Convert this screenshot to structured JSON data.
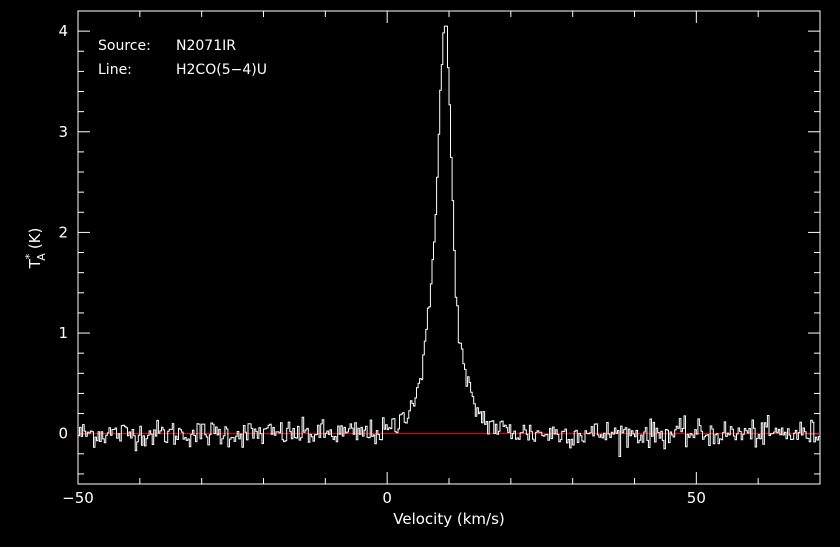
{
  "chart_data": {
    "type": "line",
    "xlabel": "Velocity (km/s)",
    "ylabel": "T*A (K)",
    "ylabel_main": "T",
    "ylabel_sup": "*",
    "ylabel_sub": "A",
    "ylabel_unit": "(K)",
    "xlim": [
      -50,
      70
    ],
    "ylim": [
      -0.5,
      4.2
    ],
    "x_ticks": [
      -50,
      0,
      50
    ],
    "x_tick_labels": [
      "−50",
      "0",
      "50"
    ],
    "y_ticks": [
      0,
      1,
      2,
      3,
      4
    ],
    "y_tick_labels": [
      "0",
      "1",
      "2",
      "3",
      "4"
    ],
    "baseline": 0,
    "grid": false,
    "colors": {
      "background": "#000000",
      "spectrum": "#ffffff",
      "baseline": "#ff0000",
      "axes": "#ffffff"
    },
    "annotations": [
      {
        "key": "Source:",
        "value": "N2071IR"
      },
      {
        "key": "Line:",
        "value": "H2CO(5−4)U"
      }
    ],
    "series": [
      {
        "x": [
          -50,
          -45,
          -40,
          -35,
          -30,
          -25,
          -20,
          -15,
          -10,
          -5,
          0,
          2,
          3,
          4,
          5,
          6,
          7,
          8,
          8.5,
          9,
          9.3,
          9.6,
          10,
          10.4,
          10.8,
          11.5,
          12.5,
          14,
          16,
          18,
          20,
          25,
          30,
          35,
          40,
          45,
          50,
          55,
          60,
          65,
          70
        ],
        "values": [
          0,
          0,
          0,
          0,
          0,
          0,
          0,
          0,
          0,
          0,
          0.02,
          0.1,
          0.22,
          0.3,
          0.45,
          0.75,
          1.35,
          2.4,
          3.2,
          3.85,
          4.07,
          4.0,
          3.5,
          2.7,
          1.9,
          1.05,
          0.6,
          0.28,
          0.12,
          0.05,
          0.02,
          0,
          0,
          0,
          0,
          0,
          0,
          0,
          0,
          0,
          0
        ]
      }
    ]
  }
}
